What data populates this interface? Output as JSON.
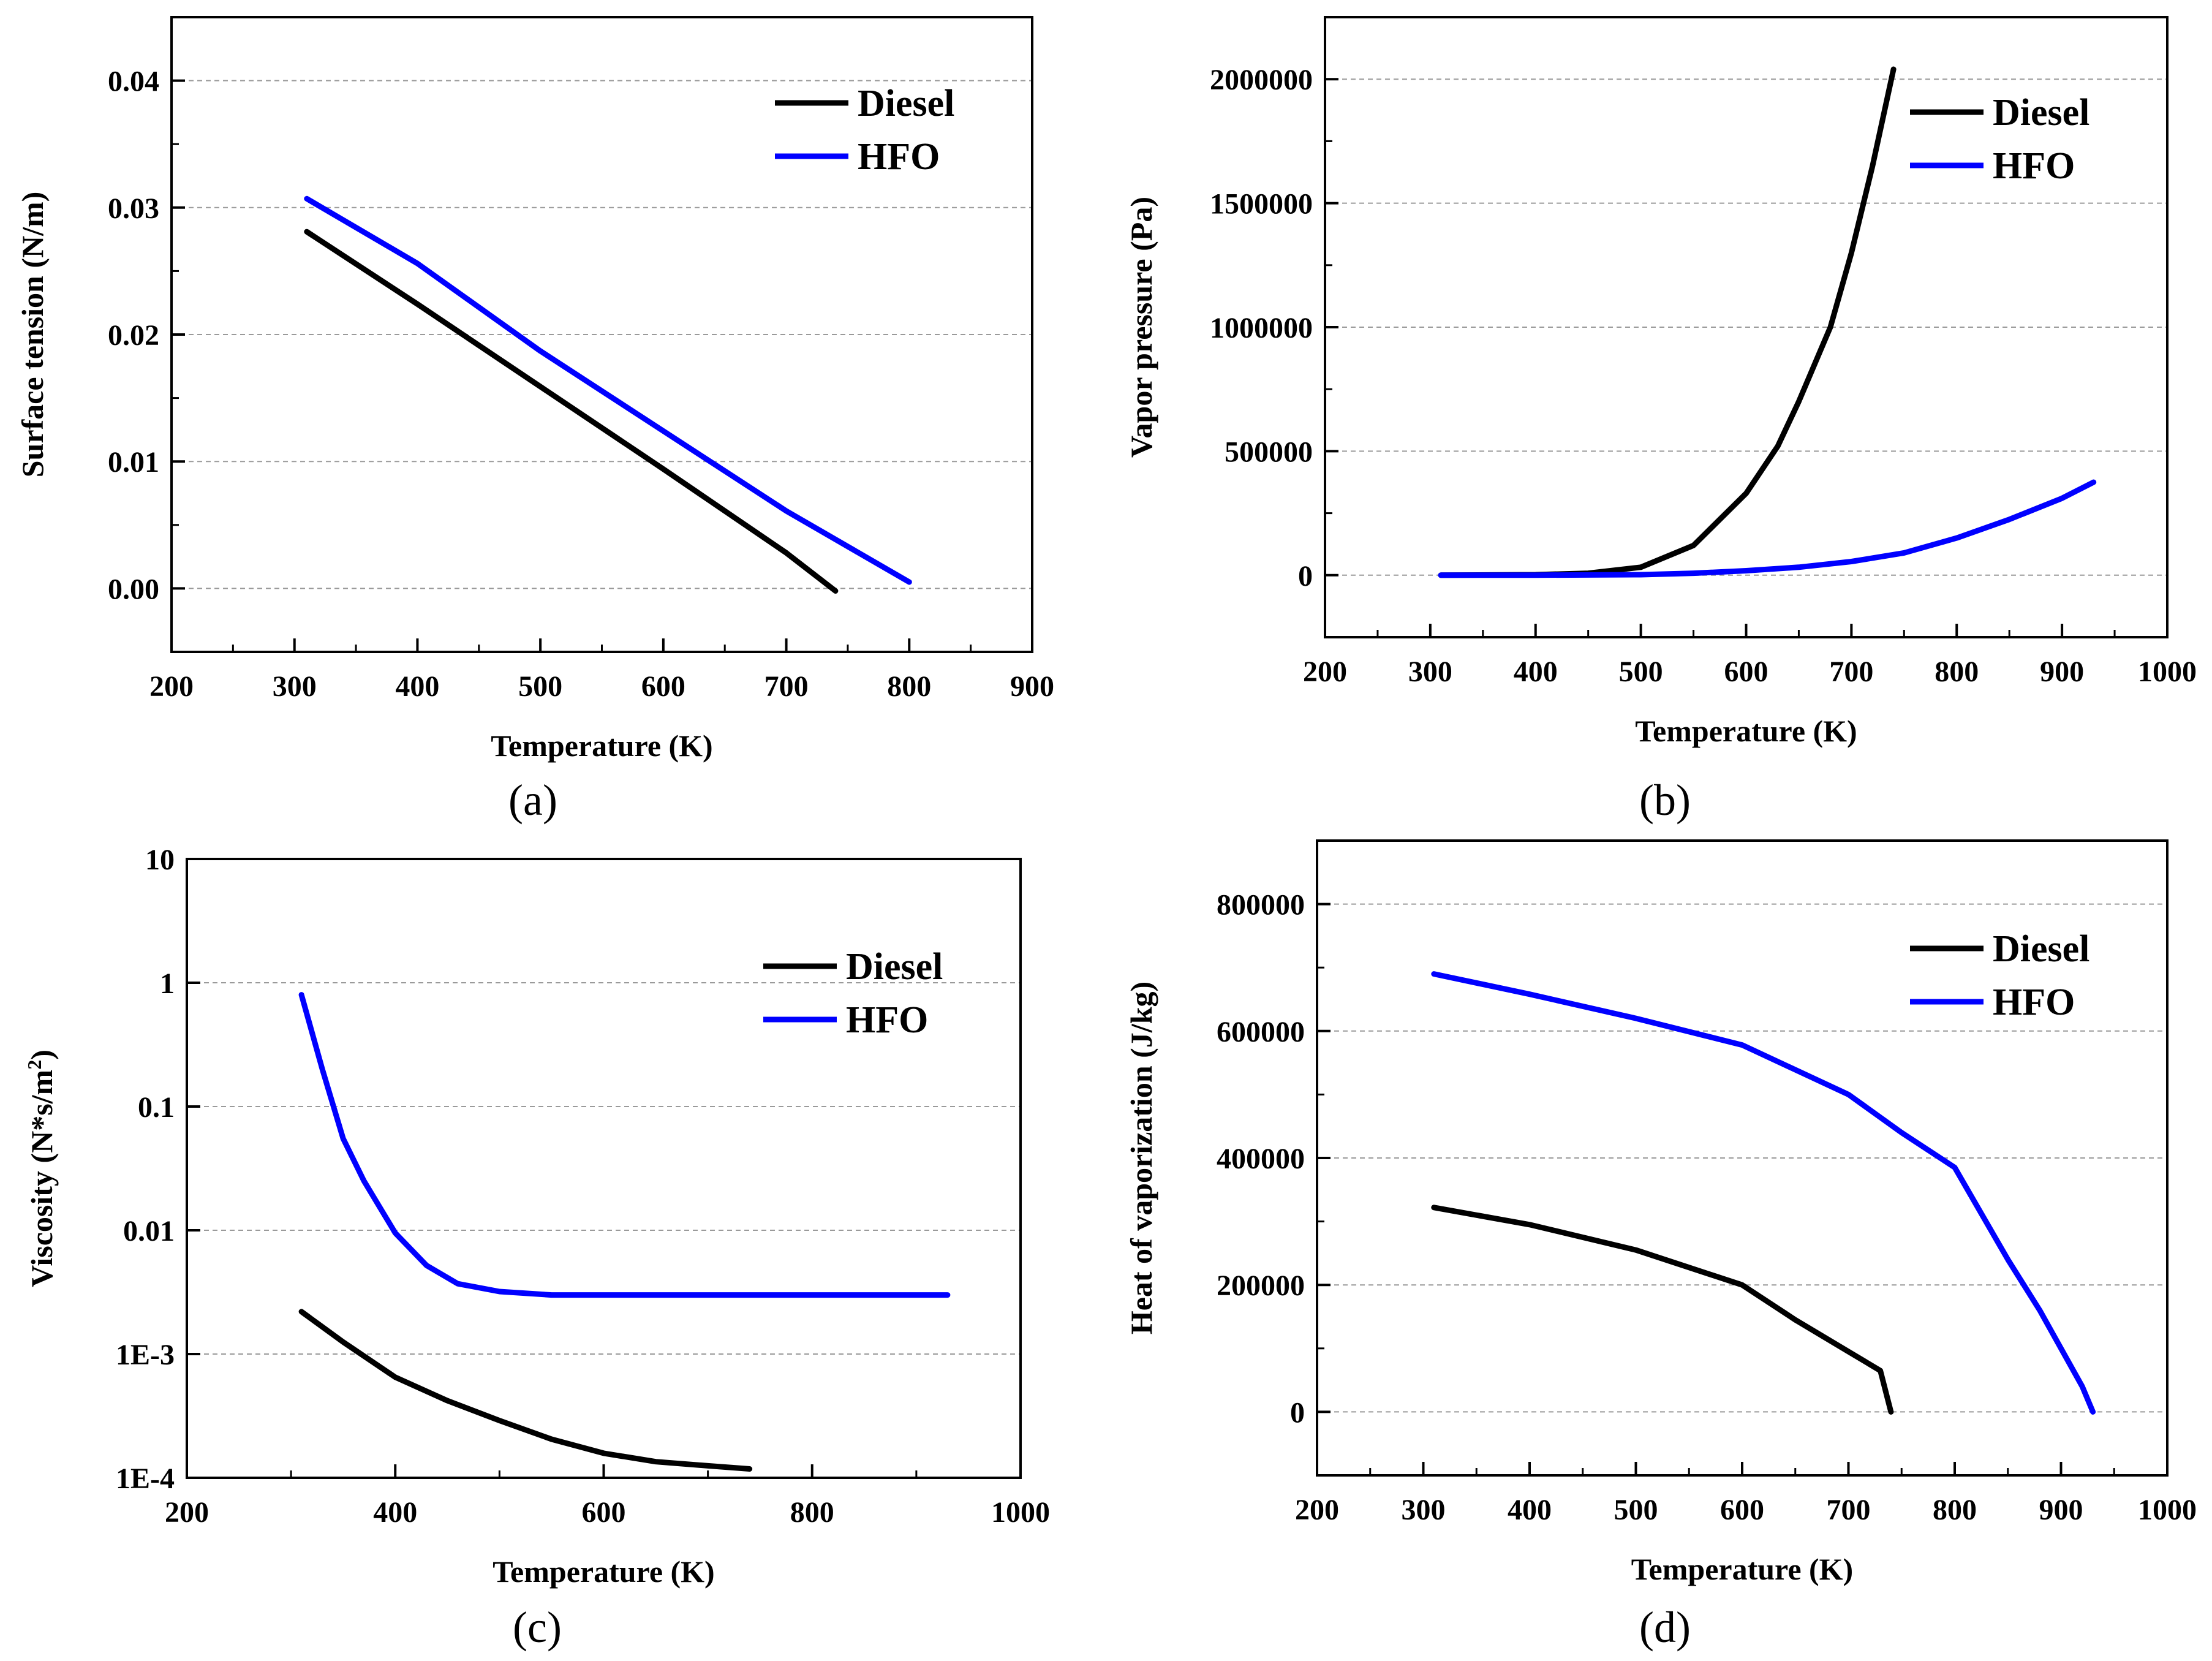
{
  "figure": {
    "panel_labels": [
      "(a)",
      "(b)",
      "(c)",
      "(d)"
    ]
  },
  "colors": {
    "diesel": "#000000",
    "hfo": "#0000ff",
    "grid": "#9a9a9a",
    "axis": "#000000"
  },
  "chart_data": [
    {
      "type": "line",
      "xlabel": "Temperature (K)",
      "ylabel": "Surface tension (N/m)",
      "xlim": [
        200,
        900
      ],
      "ylim": [
        -0.005,
        0.045
      ],
      "xticks": [
        200,
        300,
        400,
        500,
        600,
        700,
        800,
        900
      ],
      "xtick_labels": [
        "200",
        "300",
        "400",
        "500",
        "600",
        "700",
        "800",
        "900"
      ],
      "yticks": [
        0.0,
        0.01,
        0.02,
        0.03,
        0.04
      ],
      "ytick_labels": [
        "0.00",
        "0.01",
        "0.02",
        "0.03",
        "0.04"
      ],
      "grid": "horizontal dashed",
      "legend_position": "top-right",
      "series": [
        {
          "name": "Diesel",
          "x": [
            310,
            400,
            500,
            600,
            700,
            740
          ],
          "y": [
            0.0281,
            0.0224,
            0.0159,
            0.0094,
            0.0028,
            -0.0002
          ]
        },
        {
          "name": "HFO",
          "x": [
            310,
            400,
            500,
            600,
            700,
            800
          ],
          "y": [
            0.0307,
            0.0256,
            0.0187,
            0.0124,
            0.0061,
            0.0005
          ]
        }
      ]
    },
    {
      "type": "line",
      "xlabel": "Temperature (K)",
      "ylabel": "Vapor pressure (Pa)",
      "xlim": [
        200,
        1000
      ],
      "ylim": [
        -250000,
        2250000
      ],
      "xticks": [
        200,
        300,
        400,
        500,
        600,
        700,
        800,
        900,
        1000
      ],
      "xtick_labels": [
        "200",
        "300",
        "400",
        "500",
        "600",
        "700",
        "800",
        "900",
        "1000"
      ],
      "yticks": [
        0,
        500000,
        1000000,
        1500000,
        2000000
      ],
      "ytick_labels": [
        "0",
        "500000",
        "1000000",
        "1500000",
        "2000000"
      ],
      "grid": "horizontal dashed",
      "legend_position": "top-right",
      "series": [
        {
          "name": "Diesel",
          "x": [
            310,
            400,
            450,
            500,
            550,
            600,
            630,
            650,
            680,
            700,
            720,
            740
          ],
          "y": [
            0,
            2000,
            8000,
            32000,
            120000,
            330000,
            520000,
            700000,
            1000000,
            1300000,
            1650000,
            2040000
          ]
        },
        {
          "name": "HFO",
          "x": [
            310,
            400,
            500,
            550,
            600,
            650,
            700,
            750,
            800,
            850,
            900,
            930
          ],
          "y": [
            0,
            300,
            2000,
            8000,
            18000,
            32000,
            55000,
            90000,
            150000,
            225000,
            310000,
            375000
          ]
        }
      ]
    },
    {
      "type": "line",
      "xlabel": "Temperature (K)",
      "ylabel": "Viscosity (N*s/m2)",
      "yscale": "log",
      "xlim": [
        200,
        1000
      ],
      "ylim": [
        0.0001,
        10
      ],
      "xticks": [
        200,
        400,
        600,
        800,
        1000
      ],
      "xtick_labels": [
        "200",
        "400",
        "600",
        "800",
        "1000"
      ],
      "yticks": [
        0.0001,
        0.001,
        0.01,
        0.1,
        1,
        10
      ],
      "ytick_labels": [
        "1E-4",
        "1E-3",
        "0.01",
        "0.1",
        "1",
        "10"
      ],
      "grid": "horizontal dashed",
      "legend_position": "top-right",
      "series": [
        {
          "name": "Diesel",
          "x": [
            310,
            350,
            400,
            450,
            500,
            550,
            600,
            650,
            700,
            740
          ],
          "y": [
            0.0022,
            0.00125,
            0.00065,
            0.00042,
            0.00029,
            0.000205,
            0.000158,
            0.000135,
            0.000125,
            0.000118
          ]
        },
        {
          "name": "HFO",
          "x": [
            310,
            330,
            350,
            370,
            400,
            430,
            460,
            500,
            550,
            600,
            700,
            800,
            930
          ],
          "y": [
            0.8,
            0.2,
            0.055,
            0.025,
            0.0095,
            0.0052,
            0.0037,
            0.0032,
            0.003,
            0.003,
            0.003,
            0.003,
            0.003
          ]
        }
      ]
    },
    {
      "type": "line",
      "xlabel": "Temperature (K)",
      "ylabel": "Heat of vaporization (J/kg)",
      "xlim": [
        200,
        1000
      ],
      "ylim": [
        -100000,
        900000
      ],
      "xticks": [
        200,
        300,
        400,
        500,
        600,
        700,
        800,
        900,
        1000
      ],
      "xtick_labels": [
        "200",
        "300",
        "400",
        "500",
        "600",
        "700",
        "800",
        "900",
        "1000"
      ],
      "yticks": [
        0,
        200000,
        400000,
        600000,
        800000
      ],
      "ytick_labels": [
        "0",
        "200000",
        "400000",
        "600000",
        "800000"
      ],
      "grid": "horizontal dashed",
      "legend_position": "top-right",
      "series": [
        {
          "name": "Diesel",
          "x": [
            310,
            400,
            500,
            600,
            650,
            700,
            730,
            740
          ],
          "y": [
            322000,
            295000,
            255000,
            200000,
            145000,
            95000,
            65000,
            0
          ]
        },
        {
          "name": "HFO",
          "x": [
            310,
            400,
            500,
            600,
            700,
            750,
            800,
            850,
            880,
            900,
            920,
            930
          ],
          "y": [
            690000,
            658000,
            620000,
            578000,
            500000,
            440000,
            385000,
            240000,
            160000,
            100000,
            40000,
            0
          ]
        }
      ]
    }
  ]
}
